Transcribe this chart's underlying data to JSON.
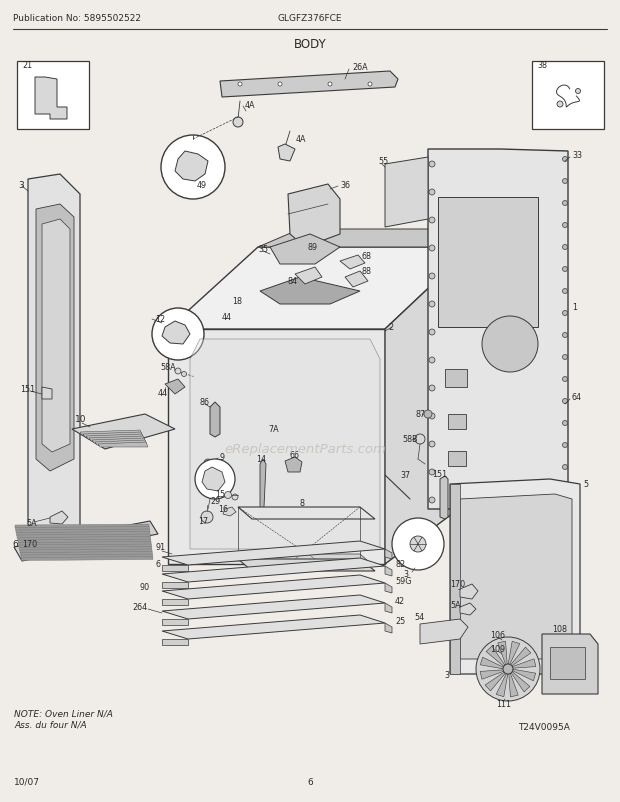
{
  "title": "BODY",
  "model": "GLGFZ376FCE",
  "publication": "Publication No: 5895502522",
  "footer_left": "10/07",
  "footer_center": "6",
  "note_text": "NOTE: Oven Liner N/A\nAss. du four N/A",
  "watermark": "eReplacementParts.com",
  "bg_color": "#f0ede8",
  "line_color": "#3a3a3a",
  "text_color": "#2a2a2a",
  "light_gray": "#d8d8d8",
  "mid_gray": "#b8b8b8",
  "dark_gray": "#888888",
  "white": "#ffffff"
}
